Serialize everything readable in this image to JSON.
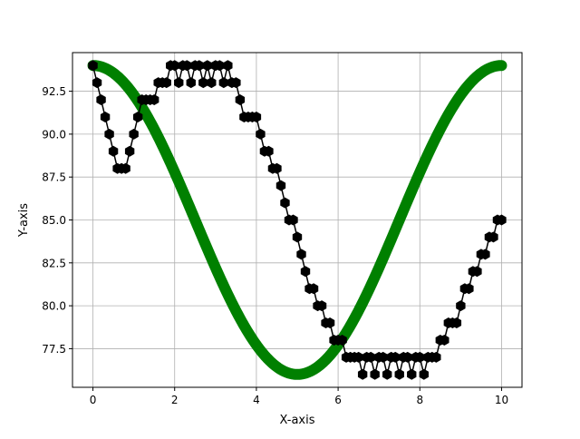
{
  "chart_data": {
    "type": "line",
    "title": "",
    "xlabel": "X-axis",
    "ylabel": "Y-axis",
    "xlim": [
      -0.5,
      10.5
    ],
    "ylim": [
      75.25,
      94.75
    ],
    "xticks": [
      0,
      2,
      4,
      6,
      8,
      10
    ],
    "xtick_labels": [
      "0",
      "2",
      "4",
      "6",
      "8",
      "10"
    ],
    "yticks": [
      77.5,
      80.0,
      82.5,
      85.0,
      87.5,
      90.0,
      92.5
    ],
    "ytick_labels": [
      "77.5",
      "80.0",
      "82.5",
      "85.0",
      "87.5",
      "90.0",
      "92.5"
    ],
    "grid": true,
    "colors": {
      "series1": "#000000",
      "series2": "#008000"
    },
    "series": [
      {
        "marker": "hexagon",
        "color": "#000000",
        "x": [
          0.0,
          0.1,
          0.2,
          0.3,
          0.4,
          0.5,
          0.6,
          0.7,
          0.8,
          0.9,
          1.0,
          1.1,
          1.2,
          1.3,
          1.4,
          1.5,
          1.6,
          1.7,
          1.8,
          1.9,
          2.0,
          2.1,
          2.2,
          2.3,
          2.4,
          2.5,
          2.6,
          2.7,
          2.8,
          2.9,
          3.0,
          3.1,
          3.2,
          3.3,
          3.4,
          3.5,
          3.6,
          3.7,
          3.8,
          3.9,
          4.0,
          4.1,
          4.2,
          4.3,
          4.4,
          4.5,
          4.6,
          4.7,
          4.8,
          4.9,
          5.0,
          5.1,
          5.2,
          5.3,
          5.4,
          5.5,
          5.6,
          5.7,
          5.8,
          5.9,
          6.0,
          6.1,
          6.2,
          6.3,
          6.4,
          6.5,
          6.6,
          6.7,
          6.8,
          6.9,
          7.0,
          7.1,
          7.2,
          7.3,
          7.4,
          7.5,
          7.6,
          7.7,
          7.8,
          7.9,
          8.0,
          8.1,
          8.2,
          8.3,
          8.4,
          8.5,
          8.6,
          8.7,
          8.8,
          8.9,
          9.0,
          9.1,
          9.2,
          9.3,
          9.4,
          9.5,
          9.6,
          9.7,
          9.8,
          9.9,
          10.0
        ],
        "y": [
          94,
          93,
          92,
          91,
          90,
          89,
          88,
          88,
          88,
          89,
          90,
          91,
          92,
          92,
          92,
          92,
          93,
          93,
          93,
          94,
          94,
          93,
          94,
          94,
          93,
          94,
          94,
          93,
          94,
          93,
          94,
          94,
          93,
          94,
          93,
          93,
          92,
          91,
          91,
          91,
          91,
          90,
          89,
          89,
          88,
          88,
          87,
          86,
          85,
          85,
          84,
          83,
          82,
          81,
          81,
          80,
          80,
          79,
          79,
          78,
          78,
          78,
          77,
          77,
          77,
          77,
          76,
          77,
          77,
          76,
          77,
          77,
          76,
          77,
          77,
          76,
          77,
          77,
          76,
          77,
          77,
          76,
          77,
          77,
          77,
          78,
          78,
          79,
          79,
          79,
          80,
          81,
          81,
          82,
          82,
          83,
          83,
          84,
          84,
          85,
          85
        ]
      },
      {
        "marker": "circle",
        "color": "#008000",
        "function": "85 + 9*cos(2*pi*x/10)",
        "x_range": [
          0,
          10
        ],
        "y_range": [
          76,
          94
        ]
      }
    ]
  }
}
